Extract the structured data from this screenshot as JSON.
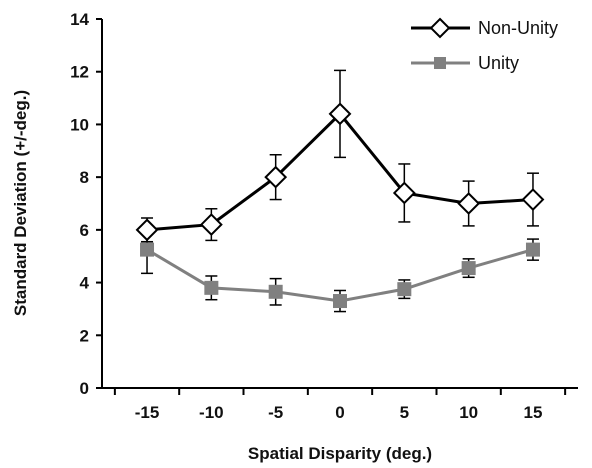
{
  "chart_data": {
    "type": "line",
    "title": "",
    "xlabel": "Spatial Disparity (deg.)",
    "ylabel": "Standard Deviation (+/-deg.)",
    "x": [
      -15,
      -10,
      -5,
      0,
      5,
      10,
      15
    ],
    "xlim": [
      -18.5,
      18.5
    ],
    "ylim": [
      0,
      14
    ],
    "x_ticks": [
      "-15",
      "-10",
      "-5",
      "0",
      "5",
      "10",
      "15"
    ],
    "y_ticks": [
      "0",
      "2",
      "4",
      "6",
      "8",
      "10",
      "12",
      "14"
    ],
    "grid": false,
    "legend_position": "top-right",
    "series": [
      {
        "name": "Non-Unity",
        "marker": "diamond-open",
        "color": "#000000",
        "values": [
          6.0,
          6.2,
          8.0,
          10.4,
          7.4,
          7.0,
          7.15
        ],
        "error": [
          0.45,
          0.6,
          0.85,
          1.65,
          1.1,
          0.85,
          1.0
        ]
      },
      {
        "name": "Unity",
        "marker": "square-filled",
        "color": "#808080",
        "values": [
          5.25,
          3.8,
          3.65,
          3.3,
          3.75,
          4.55,
          5.25
        ],
        "error": [
          0.9,
          0.45,
          0.5,
          0.4,
          0.35,
          0.35,
          0.4
        ]
      }
    ]
  }
}
